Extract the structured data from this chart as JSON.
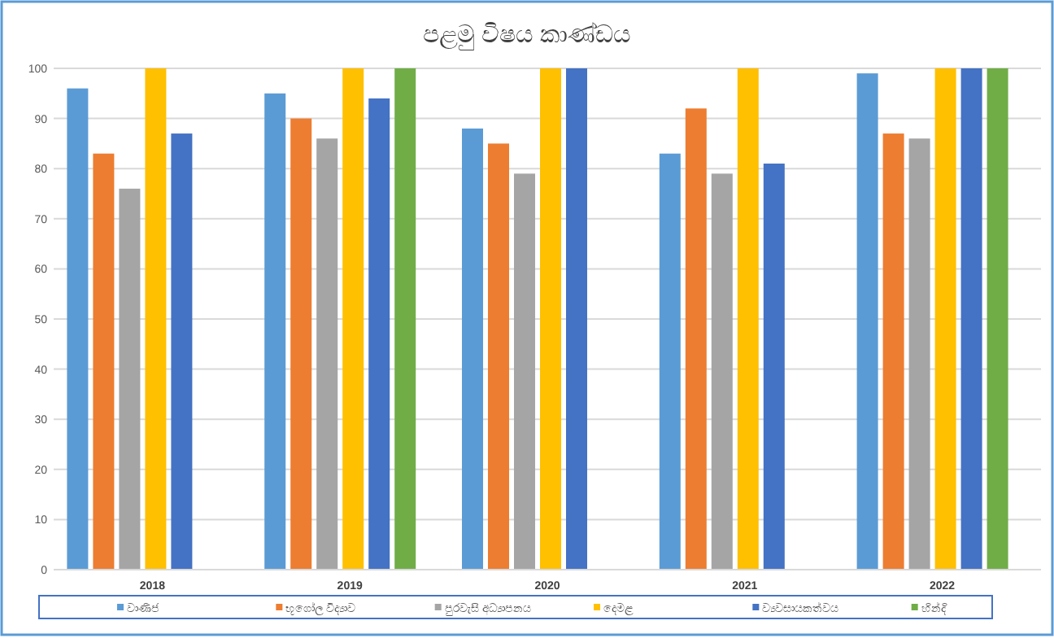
{
  "chart_data": {
    "type": "bar",
    "title": "පළමු විෂය කාණ්ඩය",
    "categories": [
      "2018",
      "2019",
      "2020",
      "2021",
      "2022"
    ],
    "series": [
      {
        "name": "වාණිජ",
        "color": "#5b9bd5",
        "values": [
          96,
          95,
          88,
          83,
          99
        ]
      },
      {
        "name": "භූගෝල විද්‍යාව",
        "color": "#ed7d31",
        "values": [
          83,
          90,
          85,
          92,
          87
        ]
      },
      {
        "name": "පුරවැසි අධ්‍යාපනය",
        "color": "#a5a5a5",
        "values": [
          76,
          86,
          79,
          79,
          86
        ]
      },
      {
        "name": "දෙමළ",
        "color": "#ffc000",
        "values": [
          100,
          100,
          100,
          100,
          100
        ]
      },
      {
        "name": "ව්‍යවසායකත්වය",
        "color": "#4472c4",
        "values": [
          87,
          94,
          100,
          81,
          100
        ]
      },
      {
        "name": "හින්දි",
        "color": "#70ad47",
        "values": [
          null,
          100,
          null,
          null,
          100
        ]
      }
    ],
    "ylim": [
      0,
      100
    ],
    "yticks": [
      0,
      10,
      20,
      30,
      40,
      50,
      60,
      70,
      80,
      90,
      100
    ],
    "grid": "y",
    "legend": "bottom"
  }
}
